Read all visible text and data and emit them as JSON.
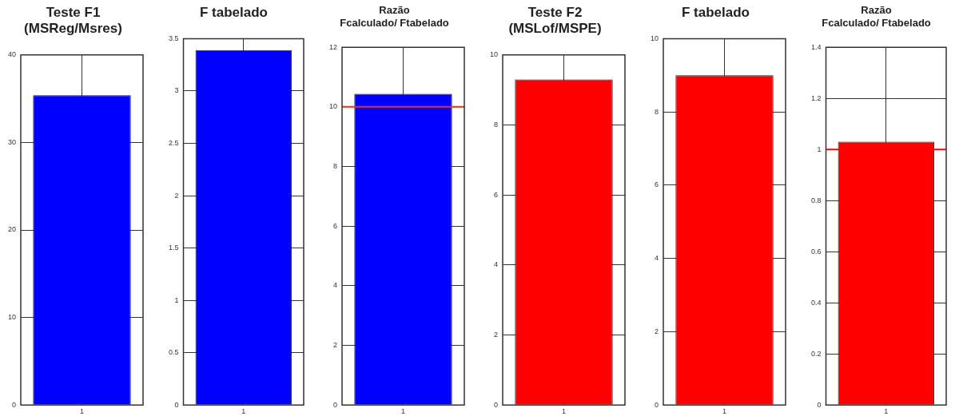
{
  "chart_data": [
    {
      "type": "bar",
      "title": "Teste F1\n(MSReg/Msres)",
      "categories": [
        "1"
      ],
      "values": [
        35.4
      ],
      "color": "#0000ff",
      "ylim": [
        0,
        40
      ],
      "yticks": [
        0,
        10,
        20,
        30,
        40
      ],
      "grid": true
    },
    {
      "type": "bar",
      "title": "F tabelado",
      "categories": [
        "1"
      ],
      "values": [
        3.39
      ],
      "color": "#0000ff",
      "ylim": [
        0,
        3.5
      ],
      "yticks": [
        0,
        0.5,
        1,
        1.5,
        2,
        2.5,
        3,
        3.5
      ],
      "grid": true
    },
    {
      "type": "bar",
      "title": "Razão\nFcalculado/ Ftabelado",
      "categories": [
        "1"
      ],
      "values": [
        10.44
      ],
      "color": "#0000ff",
      "ylim": [
        0,
        12
      ],
      "yticks": [
        0,
        2,
        4,
        6,
        8,
        10,
        12
      ],
      "grid": true,
      "ref_lines": [
        {
          "axis": "y",
          "value": 10,
          "color": "#ff2a00"
        }
      ]
    },
    {
      "type": "bar",
      "title": "Teste F2\n(MSLof/MSPE)",
      "categories": [
        "1"
      ],
      "values": [
        9.3
      ],
      "color": "#ff0000",
      "ylim": [
        0,
        10
      ],
      "yticks": [
        0,
        2,
        4,
        6,
        8,
        10
      ],
      "grid": true
    },
    {
      "type": "bar",
      "title": "F tabelado",
      "categories": [
        "1"
      ],
      "values": [
        9.0
      ],
      "color": "#ff0000",
      "ylim": [
        0,
        10
      ],
      "yticks": [
        0,
        2,
        4,
        6,
        8,
        10
      ],
      "grid": true
    },
    {
      "type": "bar",
      "title": "Razão\nFcalculado/ Ftabelado",
      "categories": [
        "1"
      ],
      "values": [
        1.03
      ],
      "color": "#ff0000",
      "ylim": [
        0,
        1.4
      ],
      "yticks": [
        0,
        0.2,
        0.4,
        0.6,
        0.8,
        1,
        1.2,
        1.4
      ],
      "grid": true,
      "ref_lines": [
        {
          "axis": "y",
          "value": 1,
          "color": "#ff0000"
        }
      ]
    }
  ]
}
